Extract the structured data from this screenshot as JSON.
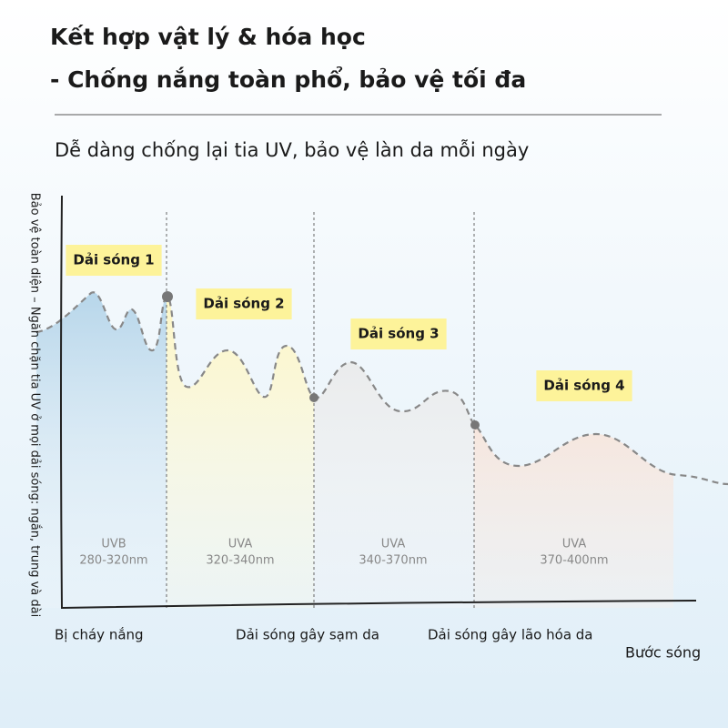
{
  "header": {
    "title_lines": [
      "Kết hợp vật lý & hóa học",
      "- Chống nắng toàn phổ, bảo vệ tối đa"
    ],
    "subtitle": "Dễ dàng chống lại tia UV, bảo vệ làn da mỗi ngày"
  },
  "axes": {
    "y_label": "Bảo vệ toàn diện – Ngăn chặn tia UV ở mọi dải sóng: ngắn, trung và dài",
    "x_label": "Bước sóng"
  },
  "bands": [
    {
      "tag": "Dải sóng 1",
      "name": "UVB",
      "range": "280-320nm"
    },
    {
      "tag": "Dải sóng 2",
      "name": "UVA",
      "range": "320-340nm"
    },
    {
      "tag": "Dải sóng 3",
      "name": "UVA",
      "range": "340-370nm"
    },
    {
      "tag": "Dải sóng 4",
      "name": "UVA",
      "range": "370-400nm"
    }
  ],
  "bottom_labels": [
    "Bị cháy nắng",
    "Dải sóng gây sạm da",
    "Dải sóng gây lão hóa da"
  ]
}
